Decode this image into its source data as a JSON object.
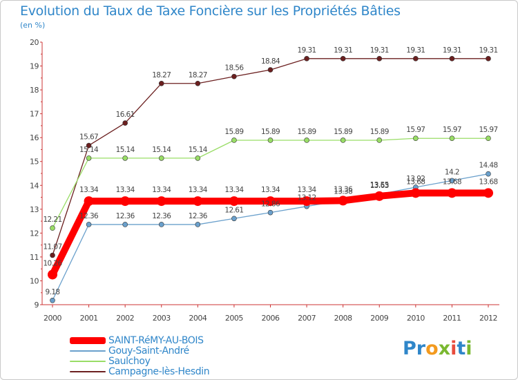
{
  "header": {
    "title": "Evolution du Taux de Taxe Foncière sur les Propriétés Bâties",
    "unit": "(en %)"
  },
  "chart_data": {
    "type": "line",
    "title": "Evolution du Taux de Taxe Foncière sur les Propriétés Bâties",
    "ylabel": "(en %)",
    "xlabel": "",
    "ylim": [
      9,
      20
    ],
    "yticks": [
      9,
      10,
      11,
      12,
      13,
      14,
      15,
      16,
      17,
      18,
      19,
      20
    ],
    "categories": [
      "2000",
      "2001",
      "2002",
      "2003",
      "2004",
      "2005",
      "2006",
      "2007",
      "2008",
      "2009",
      "2010",
      "2011",
      "2012"
    ],
    "grid": false,
    "legend_position": "bottom-left",
    "series": [
      {
        "name": "Campagne-lès-Hesdin",
        "color": "#6b1f1f",
        "values": [
          11.07,
          15.67,
          16.61,
          18.27,
          18.27,
          18.56,
          18.84,
          19.31,
          19.31,
          19.31,
          19.31,
          19.31,
          19.31
        ],
        "labels": [
          "11.07",
          "15.67",
          "16.61",
          "18.27",
          "18.27",
          "18.56",
          "18.84",
          "19.31",
          "19.31",
          "19.31",
          "19.31",
          "19.31",
          "19.31"
        ]
      },
      {
        "name": "Saulchoy",
        "color": "#99dd66",
        "values": [
          12.21,
          15.14,
          15.14,
          15.14,
          15.14,
          15.89,
          15.89,
          15.89,
          15.89,
          15.89,
          15.97,
          15.97,
          15.97
        ],
        "labels": [
          "12.21",
          "15.14",
          "15.14",
          "15.14",
          "15.14",
          "15.89",
          "15.89",
          "15.89",
          "15.89",
          "15.89",
          "15.97",
          "15.97",
          "15.97"
        ]
      },
      {
        "name": "Gouy-Saint-André",
        "color": "#6aa0cc",
        "values": [
          9.18,
          12.36,
          12.36,
          12.36,
          12.36,
          12.61,
          12.86,
          13.12,
          13.38,
          13.63,
          13.92,
          14.2,
          14.48
        ],
        "labels": [
          "9.18",
          "12.36",
          "12.36",
          "12.36",
          "12.36",
          "12.61",
          "12.86",
          "13.12",
          "13.38",
          "13.63",
          "13.92",
          "14.2",
          "14.48"
        ]
      },
      {
        "name": "SAINT-RéMY-AU-BOIS",
        "color": "#ff0000",
        "values": [
          10.26,
          13.34,
          13.34,
          13.34,
          13.34,
          13.34,
          13.34,
          13.34,
          13.36,
          13.55,
          13.68,
          13.68,
          13.68
        ],
        "labels": [
          "10.26",
          "13.34",
          "13.34",
          "13.34",
          "13.34",
          "13.34",
          "13.34",
          "13.34",
          "13.36",
          "13.55",
          "13.68",
          "13.68",
          "13.68"
        ]
      }
    ]
  },
  "legend": {
    "items": [
      {
        "label": "SAINT-RéMY-AU-BOIS",
        "color": "#ff0000"
      },
      {
        "label": "Gouy-Saint-André",
        "color": "#6aa0cc"
      },
      {
        "label": "Saulchoy",
        "color": "#99dd66"
      },
      {
        "label": "Campagne-lès-Hesdin",
        "color": "#6b1f1f"
      }
    ]
  },
  "logo": {
    "text": "Proxiti",
    "letters": [
      "P",
      "r",
      "o",
      "x",
      "i",
      "t",
      "i"
    ],
    "colors": [
      "#2f86c9",
      "#2f86c9",
      "#f39a1e",
      "#7ab830",
      "#e84c3d",
      "#2f86c9",
      "#7ab830"
    ]
  }
}
